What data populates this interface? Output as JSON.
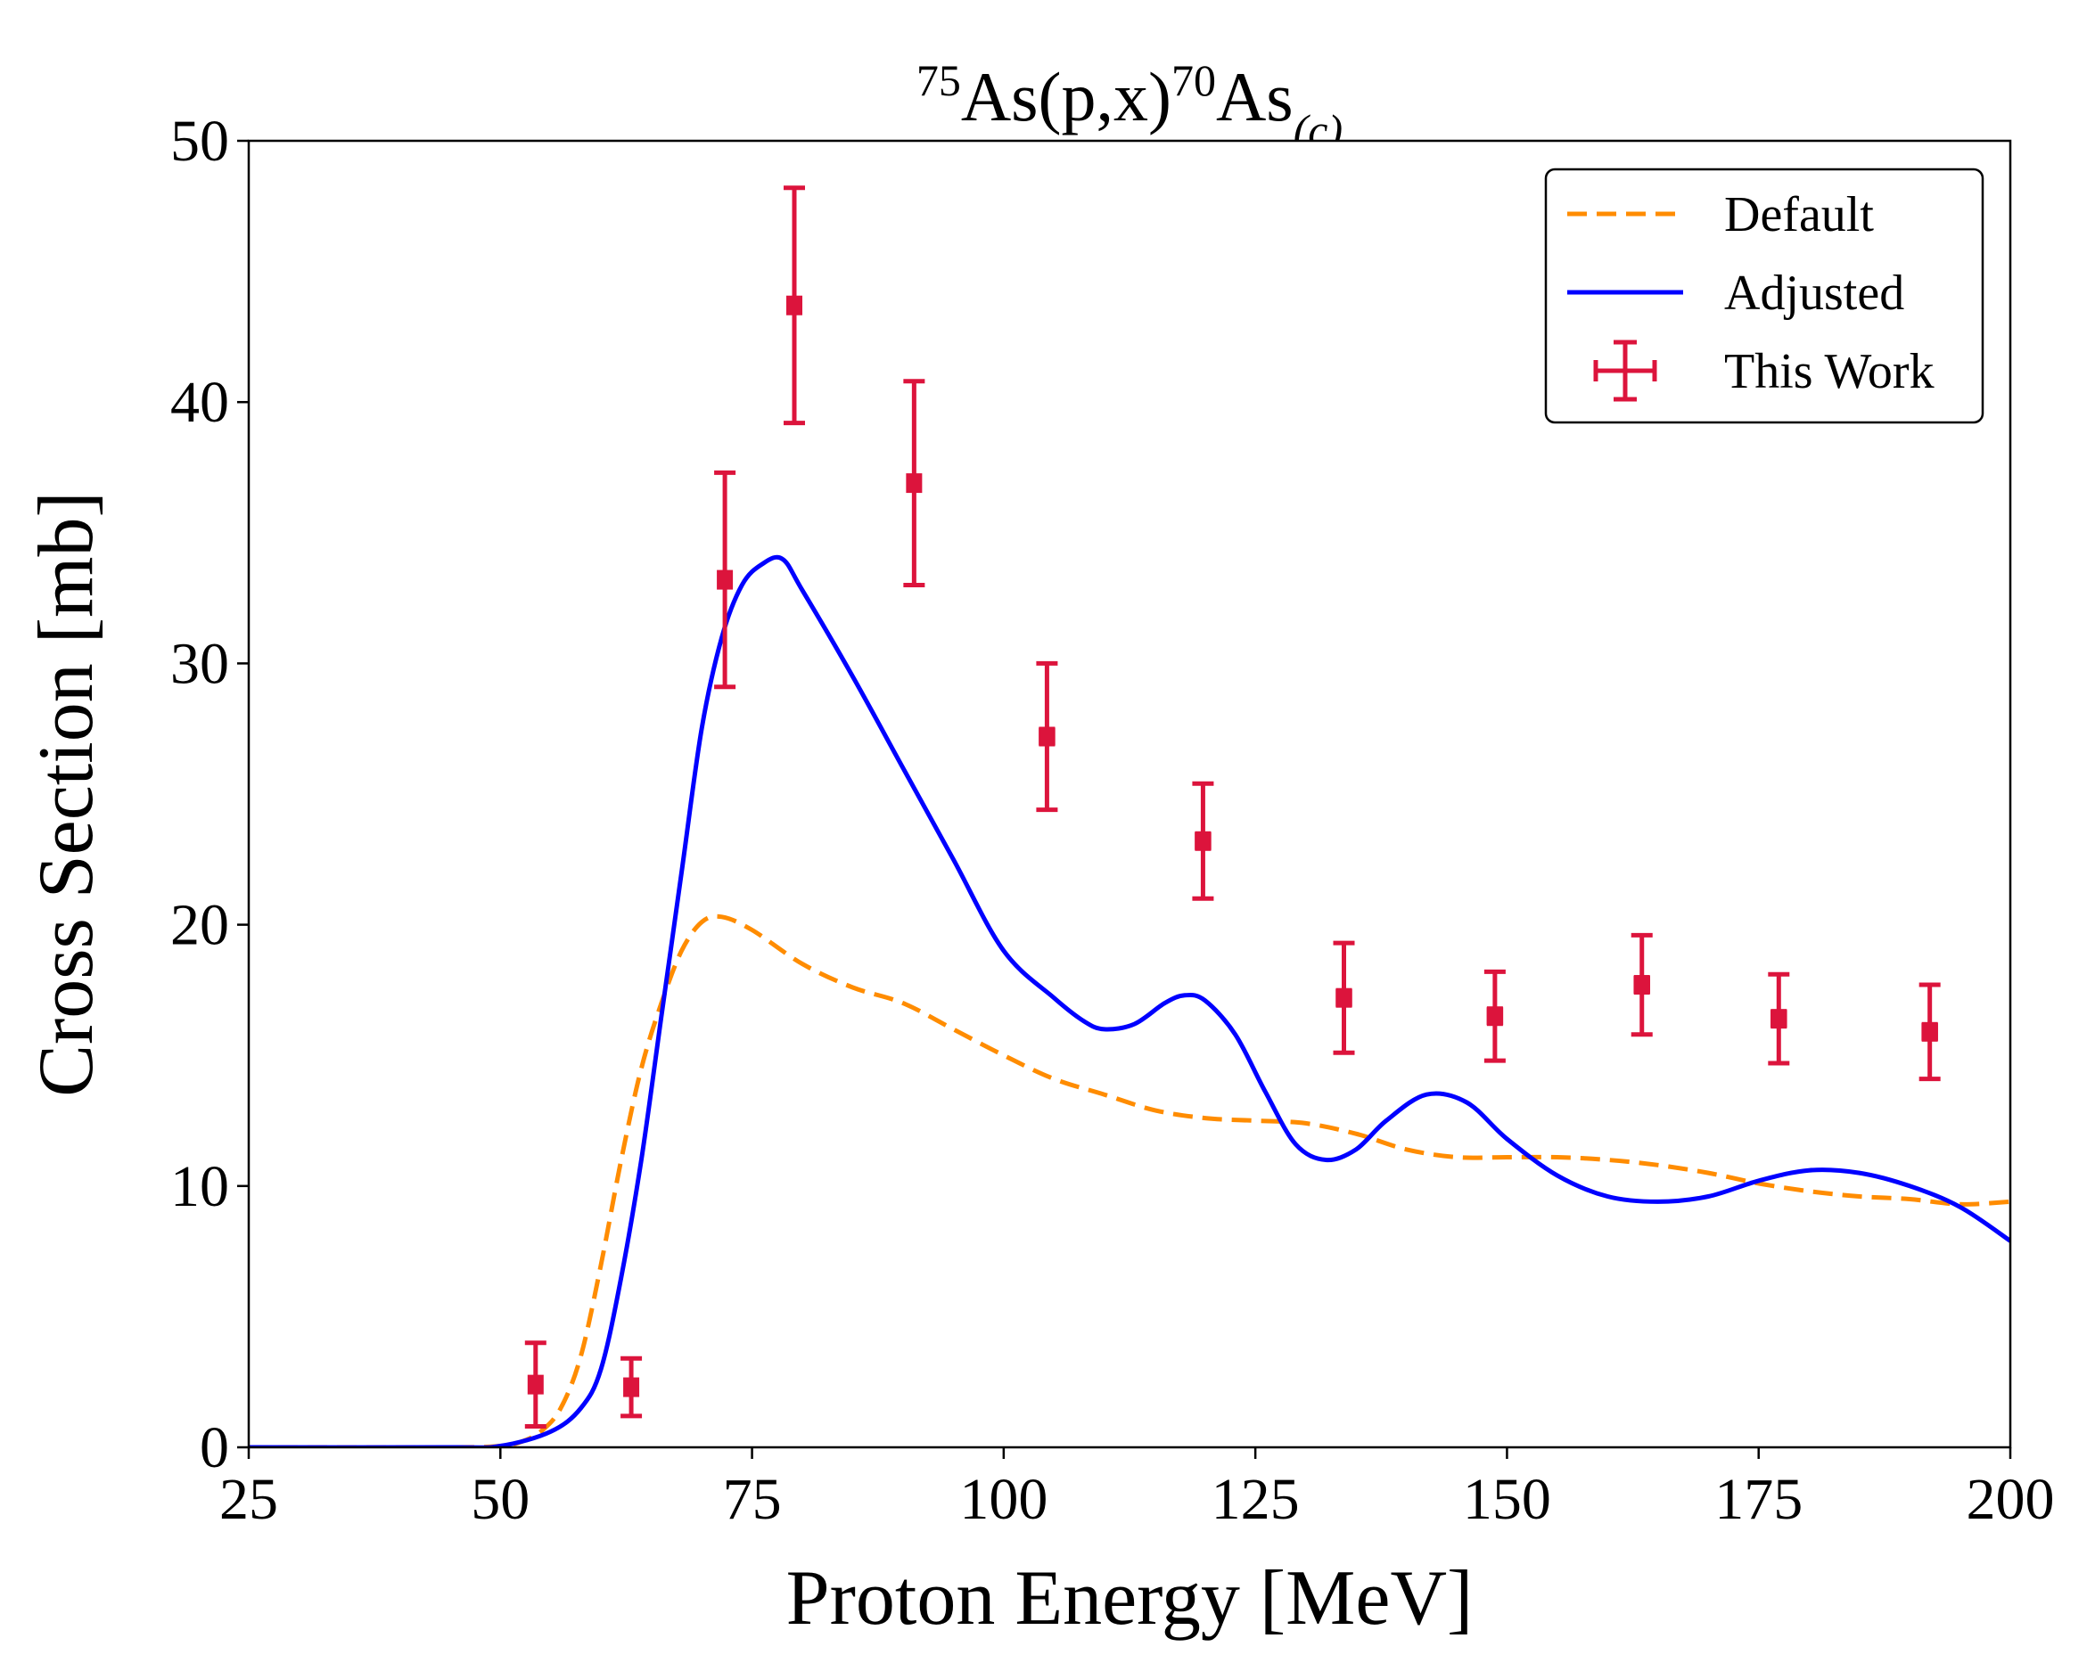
{
  "chart_data": {
    "type": "line",
    "title": {
      "pre_sup": "75",
      "main": "As(p,x)",
      "mid_sup": "70",
      "tail": "As",
      "sub": "(c)"
    },
    "xlabel": "Proton Energy [MeV]",
    "ylabel": "Cross Section [mb]",
    "xlim": [
      25,
      200
    ],
    "ylim": [
      0,
      50
    ],
    "xticks": [
      25,
      50,
      75,
      100,
      125,
      150,
      175,
      200
    ],
    "yticks": [
      0,
      10,
      20,
      30,
      40,
      50
    ],
    "legend": {
      "position": "top-right",
      "entries": [
        "Default",
        "Adjusted",
        "This Work"
      ]
    },
    "series": [
      {
        "name": "Default",
        "style": "dashed",
        "color": "#ff8c00",
        "x": [
          25,
          45,
          50,
          52,
          54,
          56,
          58,
          60,
          62,
          64,
          66,
          68,
          70,
          72,
          75,
          80,
          85,
          90,
          95,
          100,
          105,
          110,
          115,
          120,
          125,
          130,
          135,
          140,
          145,
          150,
          155,
          160,
          165,
          170,
          175,
          180,
          185,
          190,
          195,
          200
        ],
        "y": [
          0,
          0,
          0.05,
          0.2,
          0.6,
          1.5,
          3.5,
          7.0,
          11.0,
          14.5,
          17.0,
          19.0,
          20.1,
          20.3,
          19.8,
          18.5,
          17.6,
          17.0,
          16.0,
          15.0,
          14.1,
          13.5,
          12.9,
          12.6,
          12.5,
          12.4,
          12.0,
          11.4,
          11.1,
          11.1,
          11.1,
          11.0,
          10.8,
          10.5,
          10.1,
          9.8,
          9.6,
          9.5,
          9.3,
          9.4
        ]
      },
      {
        "name": "Adjusted",
        "style": "solid",
        "color": "#0000ff",
        "x": [
          25,
          45,
          50,
          55,
          58,
          60,
          62,
          64,
          66,
          68,
          70,
          72,
          74,
          76,
          78,
          80,
          85,
          90,
          95,
          100,
          105,
          108,
          110,
          113,
          116,
          118,
          120,
          123,
          126,
          129,
          132,
          135,
          138,
          142,
          146,
          150,
          155,
          160,
          165,
          170,
          175,
          180,
          185,
          190,
          195,
          200
        ],
        "y": [
          0,
          0,
          0.05,
          0.6,
          1.5,
          3.0,
          6.5,
          11.0,
          16.5,
          22.0,
          27.5,
          31.0,
          33.0,
          33.8,
          34.0,
          32.8,
          29.5,
          26.0,
          22.5,
          19.0,
          17.2,
          16.3,
          16.0,
          16.2,
          17.0,
          17.3,
          17.1,
          15.8,
          13.6,
          11.6,
          11.0,
          11.4,
          12.5,
          13.5,
          13.2,
          11.8,
          10.4,
          9.6,
          9.4,
          9.6,
          10.2,
          10.6,
          10.5,
          10.0,
          9.2,
          7.9
        ]
      }
    ],
    "error_points": {
      "name": "This Work",
      "color": "#dc143c",
      "points": [
        {
          "x": 53.5,
          "y": 2.4,
          "yerr": 1.6,
          "xerr": 0.5
        },
        {
          "x": 63,
          "y": 2.3,
          "yerr": 1.1,
          "xerr": 0.5
        },
        {
          "x": 72.3,
          "y": 33.2,
          "yerr": 4.1,
          "xerr": 0.5
        },
        {
          "x": 79.2,
          "y": 43.7,
          "yerr": 4.5,
          "xerr": 0.5
        },
        {
          "x": 91.1,
          "y": 36.9,
          "yerr": 3.9,
          "xerr": 0.5
        },
        {
          "x": 104.3,
          "y": 27.2,
          "yerr": 2.8,
          "xerr": 0.6
        },
        {
          "x": 119.8,
          "y": 23.2,
          "yerr": 2.2,
          "xerr": 0.6
        },
        {
          "x": 133.8,
          "y": 17.2,
          "yerr": 2.1,
          "xerr": 0.6
        },
        {
          "x": 148.8,
          "y": 16.5,
          "yerr": 1.7,
          "xerr": 0.6
        },
        {
          "x": 163.4,
          "y": 17.7,
          "yerr": 1.9,
          "xerr": 0.6
        },
        {
          "x": 177,
          "y": 16.4,
          "yerr": 1.7,
          "xerr": 0.6
        },
        {
          "x": 192,
          "y": 15.9,
          "yerr": 1.8,
          "xerr": 0.6
        }
      ]
    }
  }
}
